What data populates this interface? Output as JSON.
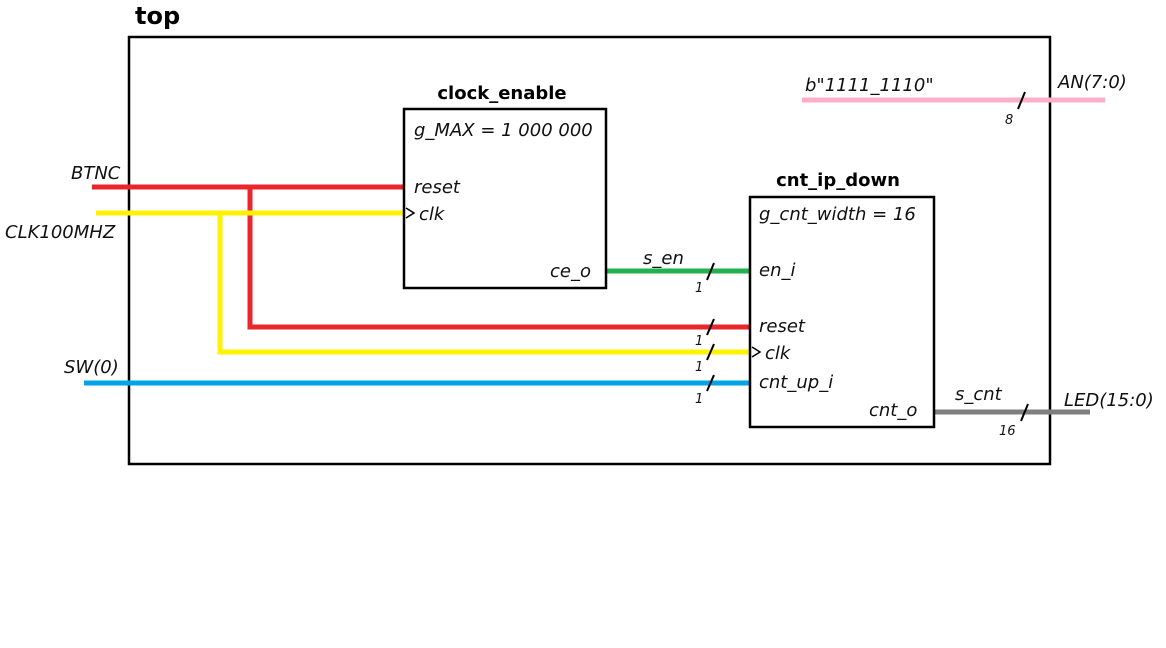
{
  "diagram": {
    "top_label": "top",
    "colors": {
      "reset": "#e8262b",
      "clock": "#fff200",
      "enable": "#22b14c",
      "switch": "#00a2e8",
      "anodes": "#ffaec9",
      "count": "#7f7f7f",
      "outline": "#000000"
    },
    "clock_enable": {
      "title": "clock_enable",
      "generic": "g_MAX = 1 000 000",
      "port_reset": "reset",
      "port_clk": "clk",
      "port_ce_o": "ce_o"
    },
    "cnt_ip_down": {
      "title": "cnt_ip_down",
      "generic": "g_cnt_width = 16",
      "port_en_i": "en_i",
      "port_reset": "reset",
      "port_clk": "clk",
      "port_cnt_up_i": "cnt_up_i",
      "port_cnt_o": "cnt_o"
    },
    "inputs": {
      "btnc": "BTNC",
      "clk100mhz": "CLK100MHZ",
      "sw0": "SW(0)"
    },
    "outputs": {
      "an": "AN(7:0)",
      "led": "LED(15:0)"
    },
    "constant": "b\"1111_1110\"",
    "signals": {
      "s_en": "s_en",
      "s_cnt": "s_cnt"
    },
    "widths": {
      "an": "8",
      "s_en": "1",
      "reset": "1",
      "clk": "1",
      "sw": "1",
      "led": "16"
    }
  }
}
